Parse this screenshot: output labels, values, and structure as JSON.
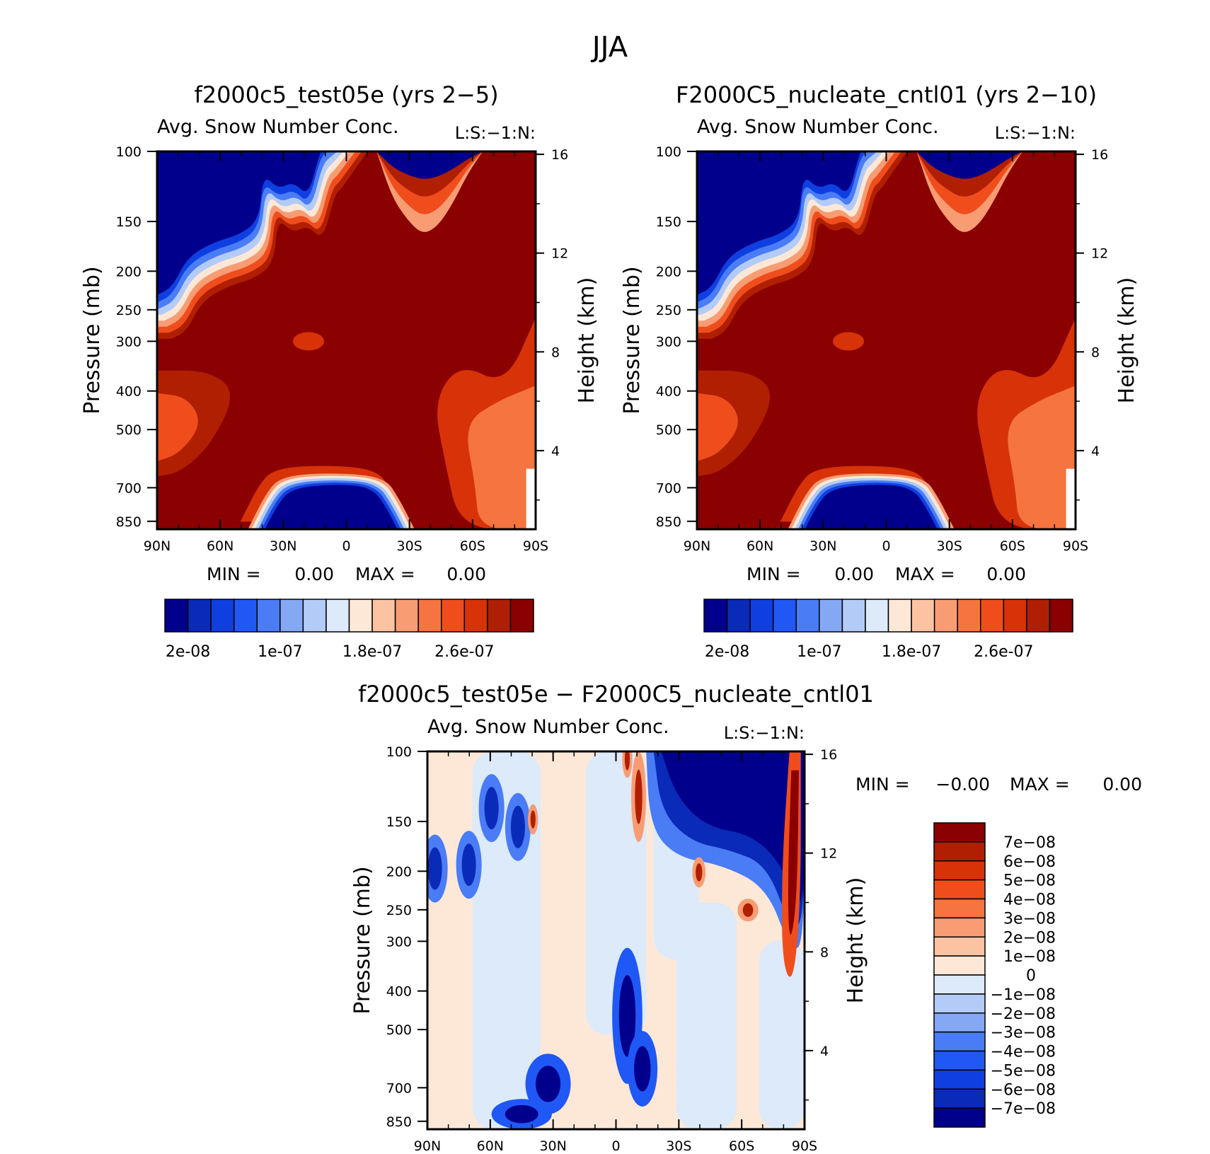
{
  "figure": {
    "title": "JJA"
  },
  "chart_data": [
    {
      "type": "heatmap",
      "title": "f2000c5_test05e (yrs 2−5)",
      "subtitle": "Avg. Snow Number Conc.",
      "corner_label": "L:S:−1:N:",
      "ylabel": "Pressure (mb)",
      "ylabel_right": "Height (km)",
      "x_ticks": [
        "90N",
        "60N",
        "30N",
        "0",
        "30S",
        "60S",
        "90S"
      ],
      "y_ticks": [
        "100",
        "150",
        "200",
        "250",
        "300",
        "400",
        "500",
        "700",
        "850"
      ],
      "y_right_ticks": [
        "16",
        "12",
        "8",
        "4"
      ],
      "stats": {
        "min_label": "MIN =",
        "min": "0.00",
        "max_label": "MAX =",
        "max": "0.00"
      },
      "colorbar": {
        "orientation": "horizontal",
        "colors": [
          "#00008c",
          "#0a2ab8",
          "#0f3fe0",
          "#2058f5",
          "#4a7cf5",
          "#85a8f5",
          "#b3cbf7",
          "#dceafa",
          "#fde8d8",
          "#fcc3a3",
          "#f89c74",
          "#f5743f",
          "#f04d1d",
          "#d83208",
          "#b01f02",
          "#8b0000"
        ],
        "tick_labels": [
          "2e-08",
          "1e-07",
          "1.8e-07",
          "2.6e-07"
        ]
      }
    },
    {
      "type": "heatmap",
      "title": "F2000C5_nucleate_cntl01 (yrs 2−10)",
      "subtitle": "Avg. Snow Number Conc.",
      "corner_label": "L:S:−1:N:",
      "ylabel": "Pressure (mb)",
      "ylabel_right": "Height (km)",
      "x_ticks": [
        "90N",
        "60N",
        "30N",
        "0",
        "30S",
        "60S",
        "90S"
      ],
      "y_ticks": [
        "100",
        "150",
        "200",
        "250",
        "300",
        "400",
        "500",
        "700",
        "850"
      ],
      "y_right_ticks": [
        "16",
        "12",
        "8",
        "4"
      ],
      "stats": {
        "min_label": "MIN =",
        "min": "0.00",
        "max_label": "MAX =",
        "max": "0.00"
      },
      "colorbar": {
        "orientation": "horizontal",
        "colors": [
          "#00008c",
          "#0a2ab8",
          "#0f3fe0",
          "#2058f5",
          "#4a7cf5",
          "#85a8f5",
          "#b3cbf7",
          "#dceafa",
          "#fde8d8",
          "#fcc3a3",
          "#f89c74",
          "#f5743f",
          "#f04d1d",
          "#d83208",
          "#b01f02",
          "#8b0000"
        ],
        "tick_labels": [
          "2e-08",
          "1e-07",
          "1.8e-07",
          "2.6e-07"
        ]
      }
    },
    {
      "type": "heatmap",
      "title": "f2000c5_test05e − F2000C5_nucleate_cntl01",
      "subtitle": "Avg. Snow Number Conc.",
      "corner_label": "L:S:−1:N:",
      "ylabel": "Pressure (mb)",
      "ylabel_right": "Height (km)",
      "x_ticks": [
        "90N",
        "60N",
        "30N",
        "0",
        "30S",
        "60S",
        "90S"
      ],
      "y_ticks": [
        "100",
        "150",
        "200",
        "250",
        "300",
        "400",
        "500",
        "700",
        "850"
      ],
      "y_right_ticks": [
        "16",
        "12",
        "8",
        "4"
      ],
      "stats": {
        "min_label": "MIN =",
        "min": "−0.00",
        "max_label": "MAX =",
        "max": "0.00"
      },
      "colorbar": {
        "orientation": "vertical",
        "colors": [
          "#8b0000",
          "#b01f02",
          "#d83208",
          "#f04d1d",
          "#f5743f",
          "#f89c74",
          "#fcc3a3",
          "#fde8d8",
          "#dceafa",
          "#b3cbf7",
          "#85a8f5",
          "#4a7cf5",
          "#2058f5",
          "#0f3fe0",
          "#0a2ab8",
          "#00008c"
        ],
        "tick_labels": [
          "7e−08",
          "6e−08",
          "5e−08",
          "4e−08",
          "3e−08",
          "2e−08",
          "1e−08",
          "0",
          "−1e−08",
          "−2e−08",
          "−3e−08",
          "−4e−08",
          "−5e−08",
          "−6e−08",
          "−7e−08"
        ]
      }
    }
  ]
}
